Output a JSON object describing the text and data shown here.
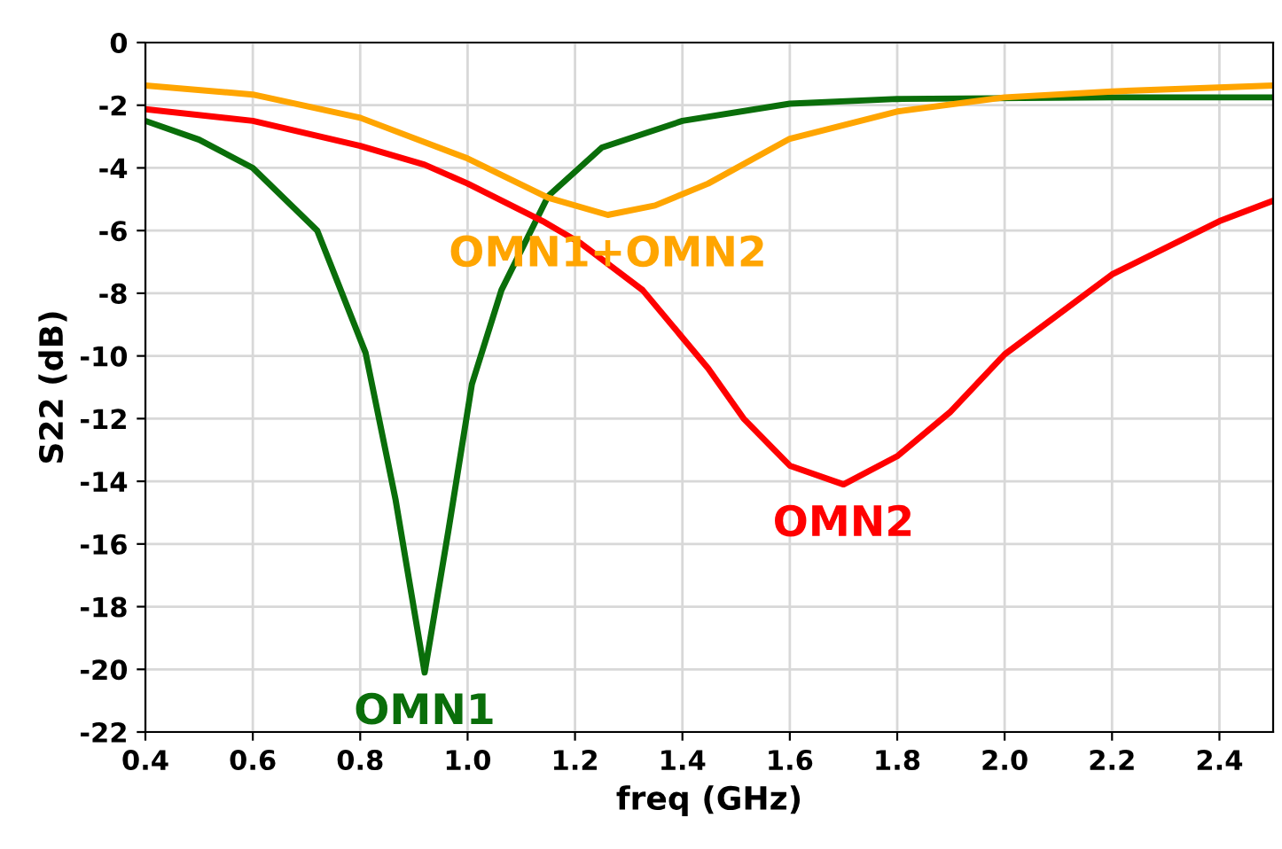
{
  "chart_data": {
    "type": "line",
    "xlabel": "freq (GHz)",
    "ylabel": "S22 (dB)",
    "xlim": [
      0.4,
      2.5
    ],
    "ylim": [
      -22,
      0
    ],
    "xticks": [
      {
        "value": 0.4,
        "label": "0.4"
      },
      {
        "value": 0.6,
        "label": "0.6"
      },
      {
        "value": 0.8,
        "label": "0.8"
      },
      {
        "value": 1.0,
        "label": "1.0"
      },
      {
        "value": 1.2,
        "label": "1.2"
      },
      {
        "value": 1.4,
        "label": "1.4"
      },
      {
        "value": 1.6,
        "label": "1.6"
      },
      {
        "value": 1.8,
        "label": "1.8"
      },
      {
        "value": 2.0,
        "label": "2.0"
      },
      {
        "value": 2.2,
        "label": "2.2"
      },
      {
        "value": 2.4,
        "label": "2.4"
      }
    ],
    "yticks": [
      0,
      {
        "value": -2,
        "label": "-2"
      },
      {
        "value": -4,
        "label": "-4"
      },
      {
        "value": -6,
        "label": "-6"
      },
      {
        "value": -8,
        "label": "-8"
      },
      {
        "value": -10,
        "label": "-10"
      },
      {
        "value": -12,
        "label": "-12"
      },
      {
        "value": -14,
        "label": "-14"
      },
      {
        "value": -16,
        "label": "-16"
      },
      {
        "value": -18,
        "label": "-18"
      },
      {
        "value": -20,
        "label": "-20"
      },
      {
        "value": -22,
        "label": "-22"
      }
    ],
    "grid": true,
    "legend": false,
    "marker": "none",
    "line_style": "solid",
    "series": [
      {
        "name": "OMN1",
        "color": "#0a6e0a",
        "x": [
          0.4,
          0.5,
          0.6,
          0.72,
          0.81,
          0.866,
          0.92,
          0.964,
          1.008,
          1.063,
          1.15,
          1.25,
          1.4,
          1.6,
          1.8,
          2.2,
          2.5
        ],
        "values": [
          -2.5,
          -3.1,
          -4.0,
          -6.0,
          -9.9,
          -14.6,
          -20.1,
          -15.6,
          -10.9,
          -7.9,
          -4.9,
          -3.35,
          -2.5,
          -1.95,
          -1.8,
          -1.75,
          -1.75
        ]
      },
      {
        "name": "OMN2",
        "color": "#ff0000",
        "x": [
          0.4,
          0.6,
          0.8,
          0.92,
          1.0,
          1.14,
          1.21,
          1.326,
          1.448,
          1.514,
          1.6,
          1.7,
          1.8,
          1.898,
          2.0,
          2.2,
          2.4,
          2.5
        ],
        "values": [
          -2.13,
          -2.5,
          -3.3,
          -3.9,
          -4.5,
          -5.7,
          -6.4,
          -7.9,
          -10.4,
          -12.0,
          -13.5,
          -14.1,
          -13.2,
          -11.8,
          -9.95,
          -7.4,
          -5.7,
          -5.05
        ]
      },
      {
        "name": "OMN1+OMN2",
        "color": "#ffa500",
        "x": [
          0.4,
          0.6,
          0.8,
          1.0,
          1.15,
          1.261,
          1.349,
          1.448,
          1.6,
          1.8,
          2.0,
          2.2,
          2.5
        ],
        "values": [
          -1.37,
          -1.66,
          -2.4,
          -3.7,
          -4.95,
          -5.5,
          -5.2,
          -4.5,
          -3.07,
          -2.2,
          -1.75,
          -1.56,
          -1.37
        ]
      }
    ]
  }
}
